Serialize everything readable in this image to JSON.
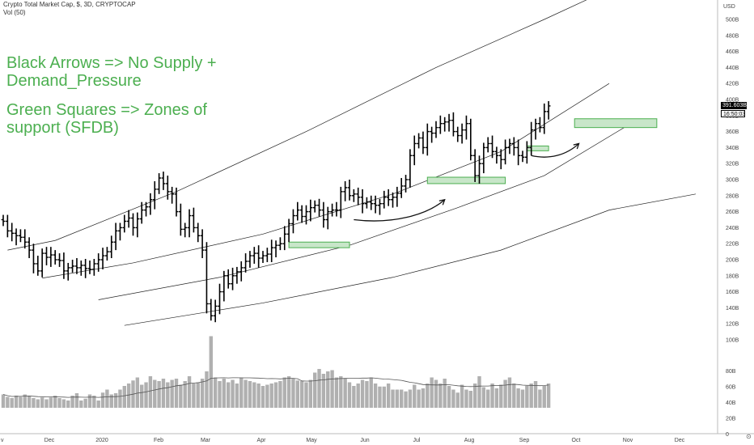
{
  "header": {
    "symbol_line": "Crypto Total Market Cap, $, 3D, CRYPTOCAP",
    "volume_line": "Vol (50)"
  },
  "annotations": {
    "line1": "Black Arrows => No Supply +",
    "line2": "Demand_Pressure",
    "line3": "Green Squares => Zones of",
    "line4": "support (SFDB)"
  },
  "price_axis": {
    "unit": "USD",
    "labels": [
      "500B",
      "480B",
      "460B",
      "440B",
      "420B",
      "400B",
      "380B",
      "360B",
      "340B",
      "320B",
      "300B",
      "280B",
      "260B",
      "240B",
      "220B",
      "200B",
      "180B",
      "160B",
      "140B",
      "120B",
      "100B"
    ],
    "last_price": "391.603B",
    "countdown": "16:50:03"
  },
  "volume_axis": {
    "labels": [
      "80B",
      "60B",
      "40B",
      "20B",
      "0"
    ]
  },
  "time_axis": {
    "labels": [
      "v",
      "Dec",
      "2020",
      "Feb",
      "Mar",
      "Apr",
      "May",
      "Jun",
      "Jul",
      "Aug",
      "Sep",
      "Oct",
      "Nov",
      "Dec"
    ]
  },
  "colors": {
    "bar": "#000000",
    "zone_fill": "#c8e6c9",
    "zone_stroke": "#4caf50",
    "volume": "#b0b0b0",
    "note_text": "#4caf50"
  },
  "chart_data": {
    "type": "ohlc",
    "interval": "3D",
    "ylim": [
      100,
      510
    ],
    "unit": "B USD",
    "closes": [
      248,
      236,
      233,
      230,
      228,
      222,
      212,
      195,
      186,
      208,
      203,
      206,
      200,
      199,
      186,
      190,
      192,
      190,
      193,
      189,
      188,
      195,
      200,
      205,
      210,
      222,
      236,
      240,
      248,
      252,
      240,
      251,
      262,
      266,
      275,
      288,
      302,
      295,
      285,
      282,
      260,
      238,
      240,
      255,
      240,
      230,
      212,
      145,
      130,
      142,
      160,
      180,
      170,
      180,
      185,
      190,
      198,
      205,
      208,
      202,
      205,
      207,
      215,
      218,
      220,
      232,
      245,
      255,
      262,
      254,
      260,
      265,
      268,
      262,
      250,
      260,
      262,
      262,
      285,
      290,
      280,
      282,
      278,
      270,
      272,
      270,
      268,
      270,
      278,
      275,
      278,
      283,
      292,
      300,
      330,
      345,
      352,
      340,
      360,
      358,
      365,
      370,
      372,
      374,
      360,
      355,
      362,
      370,
      330,
      305,
      320,
      340,
      345,
      335,
      330,
      325,
      340,
      345,
      340,
      330,
      328,
      340,
      362,
      370,
      365,
      385,
      392
    ]
  },
  "volume_data": {
    "values": [
      22,
      18,
      16,
      20,
      18,
      22,
      20,
      16,
      14,
      17,
      14,
      17,
      20,
      16,
      14,
      12,
      20,
      24,
      12,
      15,
      22,
      20,
      12,
      25,
      30,
      22,
      24,
      30,
      36,
      40,
      45,
      50,
      38,
      42,
      52,
      46,
      44,
      48,
      42,
      46,
      48,
      38,
      44,
      52,
      40,
      42,
      48,
      60,
      118,
      50,
      44,
      48,
      42,
      46,
      40,
      50,
      46,
      44,
      42,
      40,
      36,
      38,
      40,
      42,
      44,
      50,
      52,
      48,
      45,
      44,
      42,
      46,
      58,
      64,
      56,
      60,
      62,
      50,
      52,
      48,
      42,
      36,
      40,
      46,
      44,
      50,
      40,
      35,
      35,
      40,
      30,
      30,
      30,
      27,
      30,
      38,
      30,
      32,
      40,
      50,
      46,
      40,
      48,
      36,
      30,
      25,
      38,
      30,
      28,
      40,
      52,
      34,
      30,
      40,
      32,
      38,
      46,
      50,
      40,
      32,
      30,
      36,
      40,
      44,
      30,
      36,
      40
    ]
  },
  "support_zones": [
    {
      "label": "zone-may",
      "low": 215,
      "high": 222,
      "from_bar": 66,
      "to_bar": 80
    },
    {
      "label": "zone-aug",
      "low": 295,
      "high": 303,
      "from_bar": 98,
      "to_bar": 116
    },
    {
      "label": "zone-oct",
      "low": 336,
      "high": 342,
      "from_bar": 121,
      "to_bar": 126
    },
    {
      "label": "zone-latest",
      "low": 365,
      "high": 376,
      "from_bar": 132,
      "to_bar": 151
    }
  ],
  "channel_lines": [
    {
      "name": "channel-upper",
      "points": [
        [
          1,
          212
        ],
        [
          12,
          224
        ],
        [
          40,
          285
        ],
        [
          70,
          360
        ],
        [
          100,
          440
        ],
        [
          125,
          500
        ],
        [
          145,
          550
        ]
      ]
    },
    {
      "name": "channel-mid-upper",
      "points": [
        [
          9,
          177
        ],
        [
          30,
          196
        ],
        [
          60,
          232
        ],
        [
          90,
          282
        ],
        [
          115,
          335
        ],
        [
          140,
          420
        ]
      ]
    },
    {
      "name": "channel-mid-lower",
      "points": [
        [
          22,
          150
        ],
        [
          50,
          178
        ],
        [
          80,
          218
        ],
        [
          105,
          265
        ],
        [
          125,
          305
        ],
        [
          145,
          370
        ]
      ]
    },
    {
      "name": "channel-lower",
      "points": [
        [
          28,
          118
        ],
        [
          60,
          146
        ],
        [
          90,
          178
        ],
        [
          115,
          212
        ],
        [
          140,
          262
        ],
        [
          160,
          282
        ]
      ]
    }
  ],
  "arrows": [
    {
      "name": "arrow-june-july",
      "points": [
        [
          81,
          250
        ],
        [
          90,
          244
        ],
        [
          98,
          256
        ],
        [
          102,
          275
        ]
      ]
    },
    {
      "name": "arrow-september-october",
      "points": [
        [
          122,
          330
        ],
        [
          126,
          325
        ],
        [
          130,
          330
        ],
        [
          133,
          345
        ]
      ]
    }
  ]
}
